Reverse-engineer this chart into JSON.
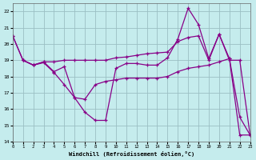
{
  "xlabel": "Windchill (Refroidissement éolien,°C)",
  "bg_color": "#c5eced",
  "grid_color": "#9abfc4",
  "line_color": "#880088",
  "xlim": [
    0,
    23
  ],
  "ylim": [
    14,
    22.5
  ],
  "yticks": [
    14,
    15,
    16,
    17,
    18,
    19,
    20,
    21,
    22
  ],
  "xticks": [
    0,
    1,
    2,
    3,
    4,
    5,
    6,
    7,
    8,
    9,
    10,
    11,
    12,
    13,
    14,
    15,
    16,
    17,
    18,
    19,
    20,
    21,
    22,
    23
  ],
  "line1_x": [
    0,
    1,
    2,
    3,
    4,
    5,
    6,
    7,
    8,
    9,
    10,
    11,
    12,
    13,
    14,
    15,
    16,
    17,
    18,
    19,
    20,
    21,
    22,
    23
  ],
  "line1_y": [
    20.5,
    19.0,
    18.7,
    18.9,
    18.3,
    18.6,
    16.7,
    15.8,
    15.3,
    15.3,
    18.5,
    18.8,
    18.8,
    18.7,
    18.7,
    19.15,
    20.3,
    22.2,
    21.2,
    19.1,
    20.6,
    19.1,
    15.5,
    14.4
  ],
  "line2_x": [
    0,
    1,
    2,
    3,
    4,
    5,
    6,
    7,
    8,
    9,
    10,
    11,
    12,
    13,
    14,
    15,
    16,
    17,
    18,
    19,
    20,
    21,
    22,
    23
  ],
  "line2_y": [
    20.5,
    19.0,
    18.7,
    18.85,
    18.25,
    17.5,
    16.7,
    16.6,
    17.5,
    17.7,
    17.8,
    17.9,
    17.9,
    17.9,
    17.9,
    18.0,
    18.3,
    18.5,
    18.6,
    18.7,
    18.9,
    19.1,
    14.4,
    14.4
  ],
  "line3_x": [
    1,
    2,
    3,
    4,
    5,
    6,
    7,
    8,
    9,
    10,
    11,
    12,
    13,
    14,
    15,
    16,
    17,
    18,
    19,
    20,
    21,
    22,
    23
  ],
  "line3_y": [
    19.0,
    18.7,
    18.9,
    18.9,
    19.0,
    19.0,
    19.0,
    19.0,
    19.0,
    19.15,
    19.2,
    19.3,
    19.4,
    19.45,
    19.5,
    20.15,
    20.4,
    20.5,
    19.0,
    20.6,
    19.0,
    19.0,
    14.4
  ]
}
